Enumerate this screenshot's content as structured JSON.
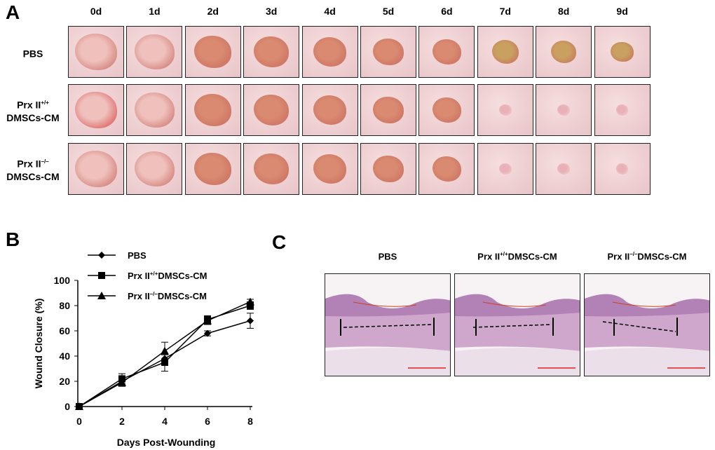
{
  "panel_a": {
    "label": "A",
    "days": [
      "0d",
      "1d",
      "2d",
      "3d",
      "4d",
      "5d",
      "6d",
      "7d",
      "8d",
      "9d"
    ],
    "rows": [
      {
        "label": "PBS",
        "sup": "",
        "label2": ""
      },
      {
        "label": "Prx II",
        "sup": "+/+",
        "label2": "DMSCs-CM"
      },
      {
        "label": "Prx II",
        "sup": "–/–",
        "label2": "DMSCs-CM"
      }
    ]
  },
  "panel_b": {
    "label": "B"
  },
  "panel_c": {
    "label": "C",
    "titles": [
      {
        "pre": "PBS",
        "sup": "",
        "post": ""
      },
      {
        "pre": "Prx II",
        "sup": "+/+",
        "post": "DMSCs-CM"
      },
      {
        "pre": "Prx II",
        "sup": "–/–",
        "post": "DMSCs-CM"
      }
    ]
  },
  "chart_data": {
    "type": "line",
    "xlabel": "Days Post-Wounding",
    "ylabel": "Wound Closure (%)",
    "xlim": [
      0,
      8
    ],
    "ylim": [
      0,
      100
    ],
    "xticks": [
      0,
      2,
      4,
      6,
      8
    ],
    "yticks": [
      0,
      20,
      40,
      60,
      80,
      100
    ],
    "legend_placement": "top-left",
    "x": [
      0,
      2,
      4,
      6,
      8
    ],
    "series": [
      {
        "name": "PBS",
        "sup": "",
        "name_post": "",
        "marker": "diamond",
        "values": [
          0,
          20,
          38,
          58,
          68
        ],
        "errors": [
          0,
          3,
          3,
          2,
          6
        ]
      },
      {
        "name": "Prx II",
        "sup": "+/+",
        "name_post": "DMSCs-CM",
        "marker": "square",
        "values": [
          0,
          22,
          35,
          69,
          80
        ],
        "errors": [
          0,
          4,
          7,
          3,
          3
        ]
      },
      {
        "name": "Prx II",
        "sup": "–/–",
        "name_post": "DMSCs-CM",
        "marker": "triangle",
        "values": [
          0,
          19,
          44,
          68,
          83
        ],
        "errors": [
          0,
          3,
          7,
          3,
          2
        ]
      }
    ]
  }
}
